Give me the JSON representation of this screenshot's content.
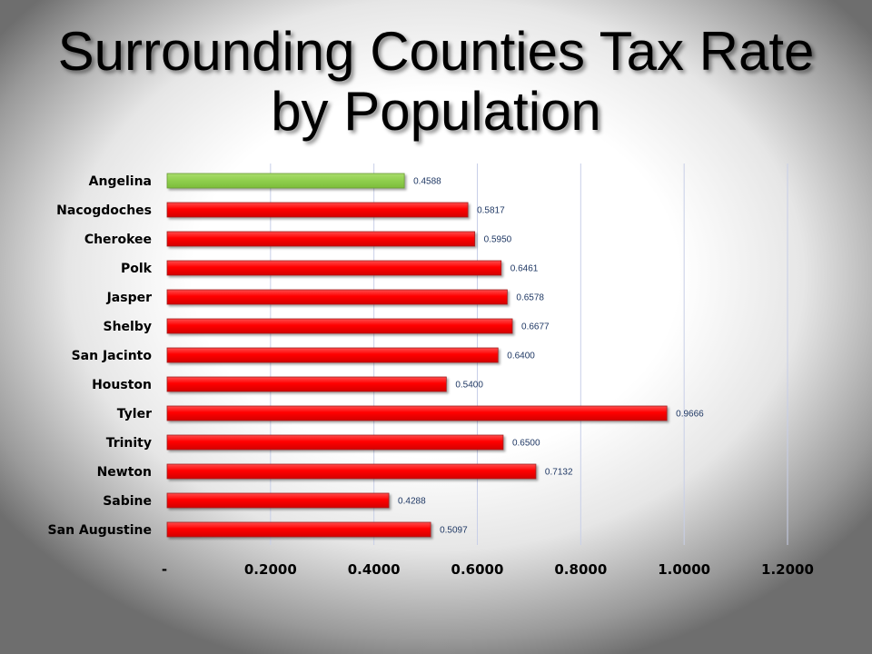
{
  "slide": {
    "title_line1": "Surrounding Counties Tax Rate",
    "title_line2": "by Population"
  },
  "colors": {
    "highlight": "#92d050",
    "default": "#ff0000",
    "bar_border": "#a02020",
    "data_label": "#1f3864",
    "gridline": "#c8cfe8"
  },
  "chart_data": {
    "type": "bar",
    "orientation": "horizontal",
    "categories": [
      "Angelina",
      "Nacogdoches",
      "Cherokee",
      "Polk",
      "Jasper",
      "Shelby",
      "San Jacinto",
      "Houston",
      "Tyler",
      "Trinity",
      "Newton",
      "Sabine",
      "San Augustine"
    ],
    "values": [
      0.4588,
      0.5817,
      0.595,
      0.6461,
      0.6578,
      0.6677,
      0.64,
      0.54,
      0.9666,
      0.65,
      0.7132,
      0.4288,
      0.5097
    ],
    "data_labels": [
      "0.4588",
      "0.5817",
      "0.5950",
      "0.6461",
      "0.6578",
      "0.6677",
      "0.6400",
      "0.5400",
      "0.9666",
      "0.6500",
      "0.7132",
      "0.4288",
      "0.5097"
    ],
    "highlight_index": 0,
    "xlim": [
      0,
      1.2
    ],
    "x_ticks": [
      0,
      0.2,
      0.4,
      0.6,
      0.8,
      1.0,
      1.2
    ],
    "x_tick_labels": [
      "-",
      "0.2000",
      "0.4000",
      "0.6000",
      "0.8000",
      "1.0000",
      "1.2000"
    ],
    "xlabel": "",
    "ylabel": "",
    "grid": true,
    "legend": "none"
  }
}
